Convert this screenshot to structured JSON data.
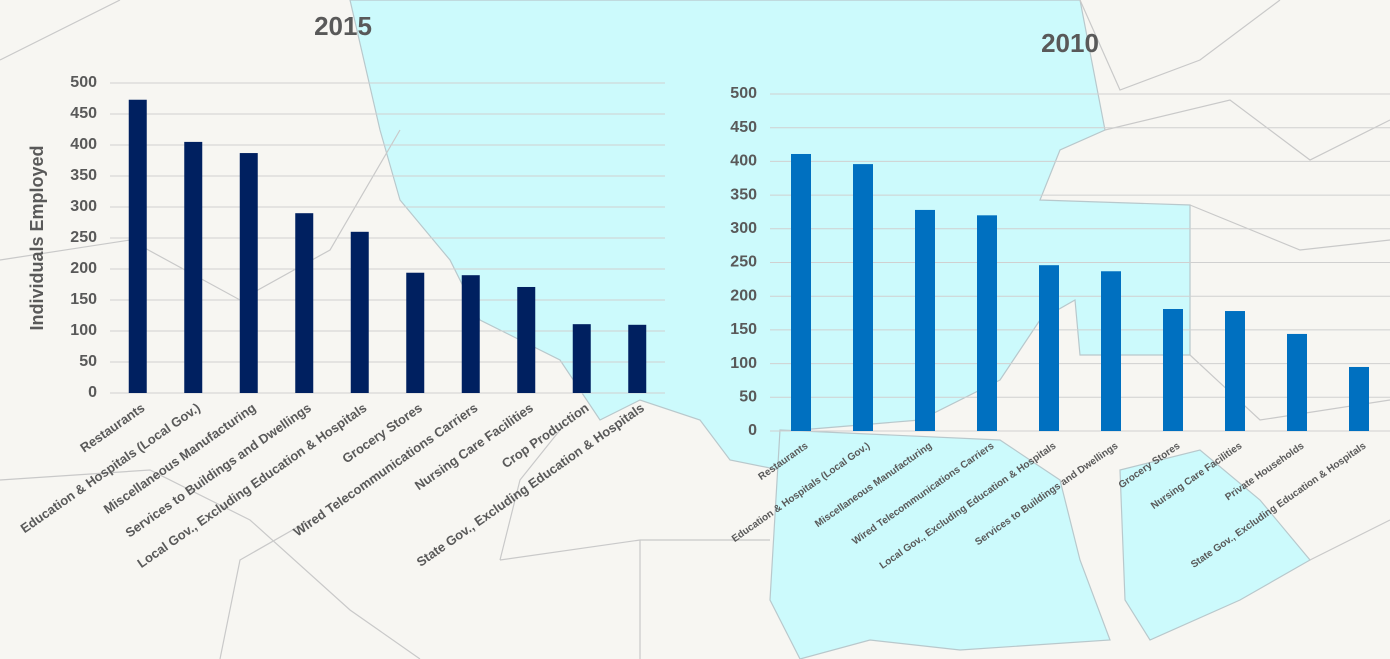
{
  "chart_data": [
    {
      "type": "bar",
      "title": "2015",
      "y_label": "Individuals Employed",
      "color": "#002060",
      "categories": [
        "Restaurants",
        "Education & Hospitals (Local Gov.)",
        "Miscellaneous Manufacturing",
        "Services to Buildings and Dwellings",
        "Local Gov., Excluding Education & Hospitals",
        "Grocery Stores",
        "Wired Telecommunications Carriers",
        "Nursing Care Facilities",
        "Crop Production",
        "State Gov., Excluding Education & Hospitals"
      ],
      "values": [
        473,
        405,
        387,
        290,
        260,
        194,
        190,
        171,
        111,
        110
      ],
      "ylim": [
        0,
        500
      ],
      "yticks": [
        0,
        50,
        100,
        150,
        200,
        250,
        300,
        350,
        400,
        450,
        500
      ],
      "grid": true
    },
    {
      "type": "bar",
      "title": "2010",
      "color": "#0070c0",
      "categories": [
        "Restaurants",
        "Education & Hospitals (Local Gov.)",
        "Miscellaneous Manufacturing",
        "Wired Telecommunications Carriers",
        "Local Gov., Excluding Education & Hospitals",
        "Services to Buildings and Dwellings",
        "Grocery Stores",
        "Nursing Care Facilities",
        "Private Households",
        "State Gov., Excluding Education & Hospitals"
      ],
      "values": [
        411,
        396,
        328,
        320,
        246,
        237,
        181,
        178,
        144,
        95
      ],
      "ylim": [
        0,
        500
      ],
      "yticks": [
        0,
        50,
        100,
        150,
        200,
        250,
        300,
        350,
        400,
        450,
        500
      ],
      "grid": true
    }
  ]
}
